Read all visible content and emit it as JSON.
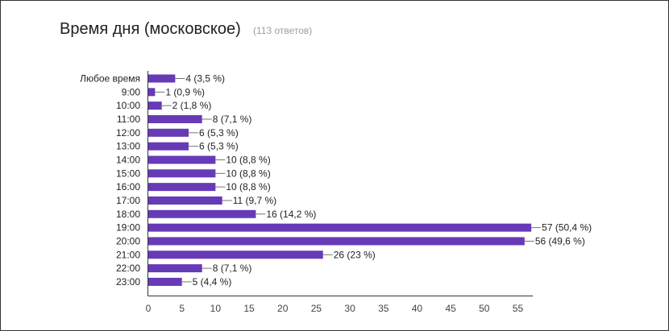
{
  "title": "Время дня (московское)",
  "subtitle": "(113 ответов)",
  "chart_data": {
    "type": "bar",
    "orientation": "horizontal",
    "title": "Время дня (московское)",
    "subtitle": "(113 ответов)",
    "categories": [
      "Любое время",
      "9:00",
      "10:00",
      "11:00",
      "12:00",
      "13:00",
      "14:00",
      "15:00",
      "16:00",
      "17:00",
      "18:00",
      "19:00",
      "20:00",
      "21:00",
      "22:00",
      "23:00"
    ],
    "values": [
      4,
      1,
      2,
      8,
      6,
      6,
      10,
      10,
      10,
      11,
      16,
      57,
      56,
      26,
      8,
      5
    ],
    "data_labels": [
      "4 (3,5 %)",
      "1 (0,9 %)",
      "2 (1,8 %)",
      "8 (7,1 %)",
      "6 (5,3 %)",
      "6 (5,3 %)",
      "10 (8,8 %)",
      "10 (8,8 %)",
      "10 (8,8 %)",
      "11 (9,7 %)",
      "16 (14,2 %)",
      "57 (50,4 %)",
      "56 (49,6 %)",
      "26 (23 %)",
      "8 (7,1 %)",
      "5 (4,4 %)"
    ],
    "x_ticks": [
      0,
      5,
      10,
      15,
      20,
      25,
      30,
      35,
      40,
      45,
      50,
      55
    ],
    "xlim": [
      0,
      57
    ],
    "grid": false,
    "legend": "none",
    "bar_color": "#673ab7",
    "leader_color": "#757575",
    "axis_color": "#333333"
  }
}
